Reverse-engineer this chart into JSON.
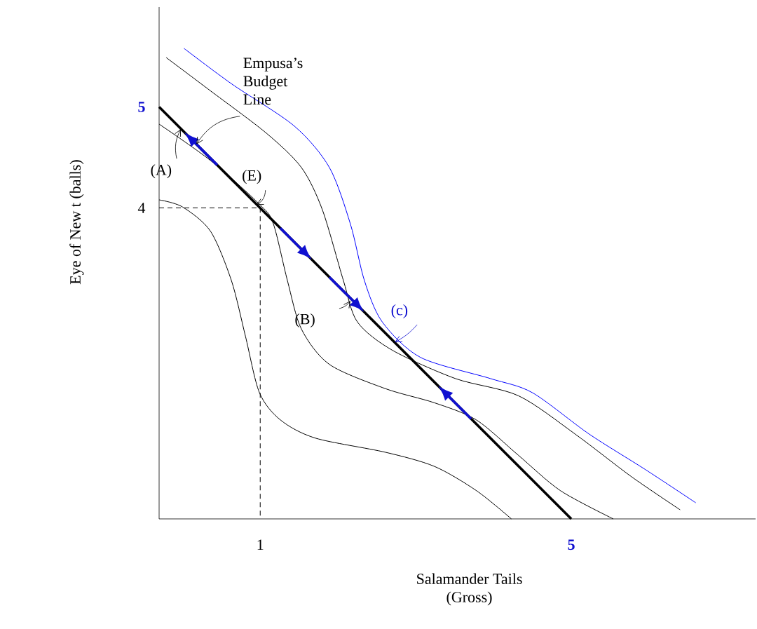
{
  "chart_data": {
    "type": "line",
    "xlabel": "Salamander Tails\n(Gross)",
    "ylabel": "Eye of New t (balls)",
    "xlim": [
      -0.3,
      7.37
    ],
    "ylim": [
      0.92,
      5.99
    ],
    "xticks": [
      1,
      5
    ],
    "yticks": [
      4,
      5
    ],
    "grid": false,
    "marker": "none",
    "series": [
      {
        "color": "#000000",
        "x": [
          -0.3,
          0,
          0.36,
          0.63,
          0.81,
          0.99,
          1.26,
          1.71,
          2.61,
          3.24,
          3.78,
          4.23
        ],
        "values": [
          4.08,
          4.01,
          3.77,
          3.28,
          2.73,
          2.17,
          1.9,
          1.72,
          1.58,
          1.44,
          1.2,
          0.92
        ]
      },
      {
        "color": "#000000",
        "x": [
          -0.3,
          0.36,
          1.0,
          1.17,
          1.35,
          1.53,
          1.89,
          2.61,
          3.24,
          3.78,
          4.32,
          4.86,
          5.54
        ],
        "values": [
          4.83,
          4.47,
          4.03,
          3.84,
          3.28,
          2.8,
          2.45,
          2.21,
          2.07,
          1.9,
          1.55,
          1.2,
          0.92
        ]
      },
      {
        "color": "#000000",
        "x": [
          -0.21,
          0.36,
          1.08,
          1.53,
          1.8,
          2.07,
          2.25,
          2.7,
          3.51,
          4.32,
          5.05,
          5.77,
          6.4
        ],
        "values": [
          5.49,
          5.16,
          4.74,
          4.4,
          3.98,
          3.28,
          2.87,
          2.59,
          2.31,
          2.14,
          1.76,
          1.34,
          1.01
        ]
      },
      {
        "color": "#0000ff",
        "x": [
          0.02,
          0.63,
          1.44,
          1.89,
          2.16,
          2.34,
          2.57,
          3.06,
          3.96,
          4.5,
          5.23,
          5.95,
          6.6
        ],
        "values": [
          5.58,
          5.23,
          4.81,
          4.4,
          3.84,
          3.28,
          2.87,
          2.52,
          2.31,
          2.17,
          1.76,
          1.41,
          1.08
        ]
      },
      {
        "color": "#000000",
        "x": [
          -0.3,
          5.0
        ],
        "values": [
          5.0,
          0.92
        ]
      },
      {
        "color": "#000000",
        "line_style": "dashed",
        "x": [
          -0.3,
          1.0,
          1.0
        ],
        "values": [
          4.0,
          4.0,
          0.92
        ]
      }
    ],
    "annotations": [
      {
        "text": "Empusa’s\nBudget\nLine",
        "x": 0.18,
        "y": 4.63
      },
      {
        "text": "(A)",
        "x": -0.02,
        "y": 4.78
      },
      {
        "text": "(E)",
        "x": 0.95,
        "y": 4.03
      },
      {
        "text": "(B)",
        "x": 2.16,
        "y": 3.08
      },
      {
        "text": "(c)",
        "x": 2.73,
        "y": 2.67
      }
    ]
  }
}
